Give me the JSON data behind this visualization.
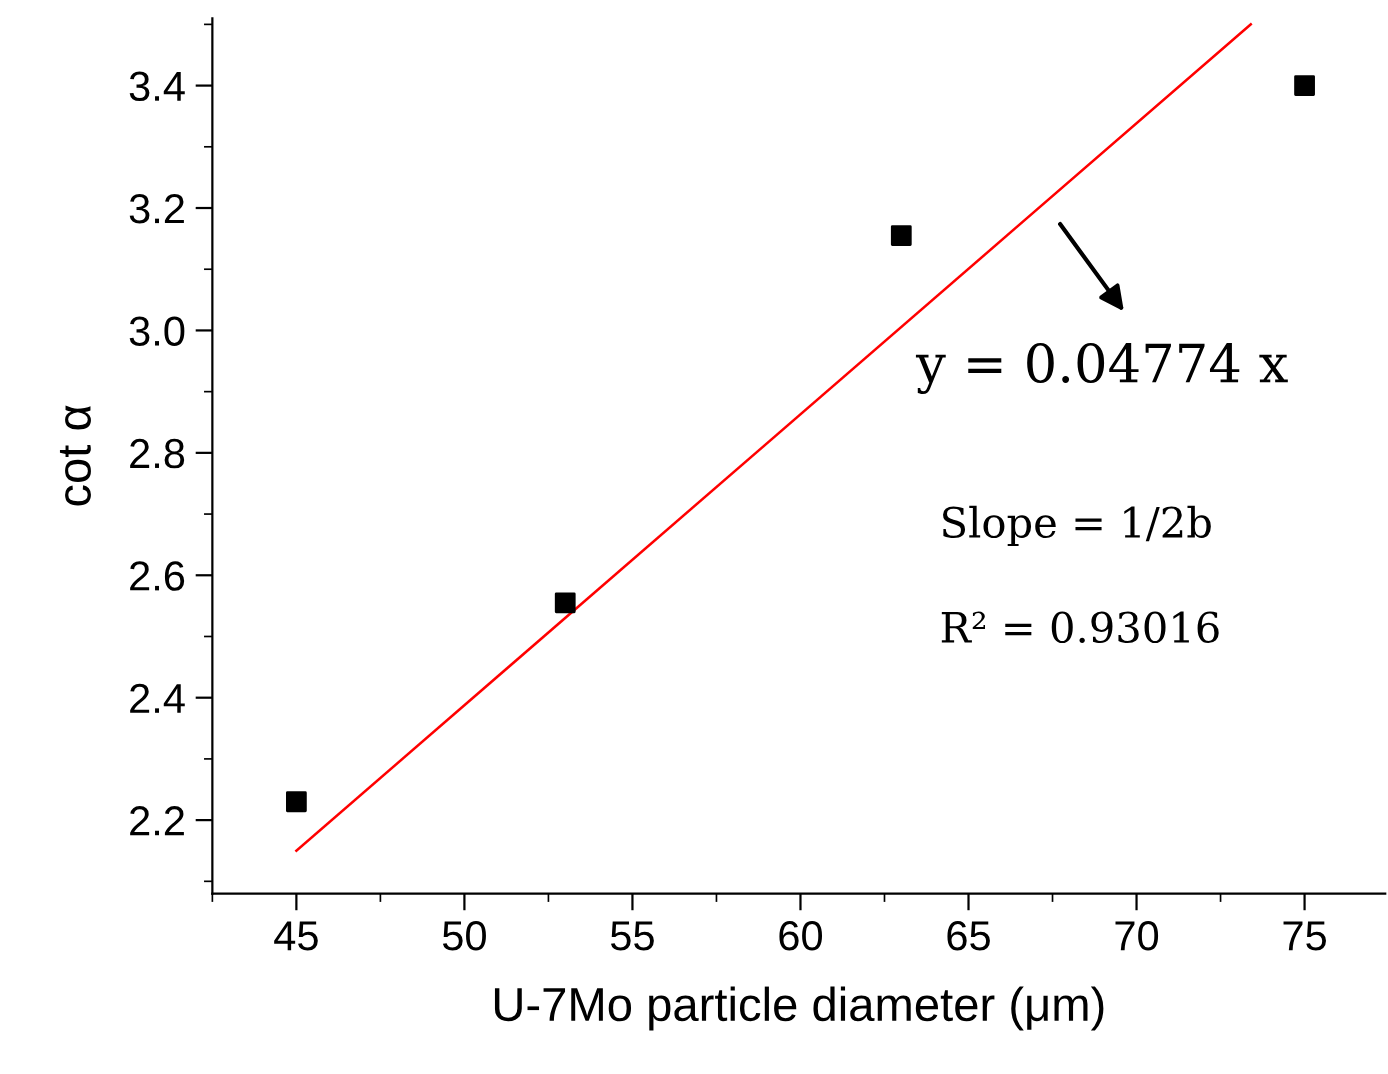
{
  "chart_data": {
    "type": "scatter",
    "xlabel": "U-7Mo particle diameter (μm)",
    "ylabel": "cot α",
    "x": [
      45,
      53,
      63,
      75
    ],
    "series": [
      {
        "color": "#000000",
        "marker": "square",
        "values": [
          2.23,
          2.555,
          3.155,
          3.4
        ]
      },
      {
        "type": "line",
        "color": "#ff0000",
        "marker": "none",
        "line_style": "solid",
        "x": [
          45,
          73.4
        ],
        "values": [
          2.15,
          3.5
        ]
      }
    ],
    "annotations": [
      "y = 0.04774 x",
      "Slope = 1/2b",
      "R² = 0.93016"
    ],
    "xlim": [
      42.5,
      77.4
    ],
    "xticks": [
      45,
      50,
      55,
      60,
      65,
      70,
      75
    ],
    "ylim": [
      2.08,
      3.51
    ],
    "yticks": [
      2.2,
      2.4,
      2.6,
      2.8,
      {
        "value": 3.0,
        "label": "3.0"
      },
      3.2,
      3.4
    ],
    "grid": false,
    "legend": false
  }
}
